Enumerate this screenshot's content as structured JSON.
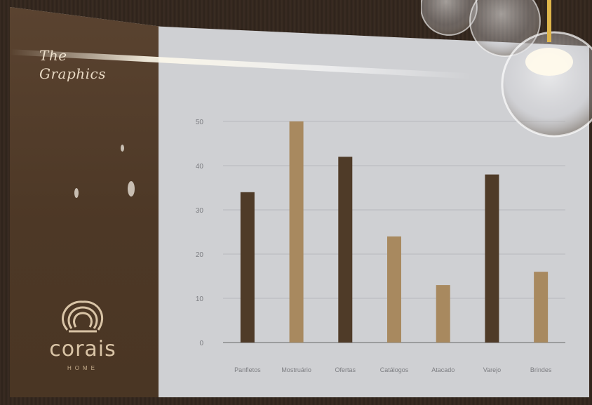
{
  "sidebar": {
    "title_line1": "The",
    "title_line2": "Graphics",
    "logo_text": "corais",
    "logo_sub": "HOME",
    "colors": {
      "panel": "#4d3826",
      "text": "#e7d8c3"
    }
  },
  "chart_data": {
    "type": "bar",
    "categories": [
      "Panfletos",
      "Mostruário",
      "Ofertas",
      "Catálogos",
      "Atacado",
      "Varejo",
      "Brindes"
    ],
    "values": [
      34,
      50,
      42,
      24,
      13,
      38,
      16
    ],
    "ylim": [
      0,
      60
    ],
    "yticks": [
      "0",
      "10",
      "20",
      "30",
      "40",
      "50"
    ],
    "ytick_values": [
      0,
      10,
      20,
      30,
      40,
      50
    ],
    "grid": true,
    "colors": [
      "#4f3b28",
      "#a8895f",
      "#4f3b28",
      "#a8895f",
      "#a8895f",
      "#4f3b28",
      "#a8895f"
    ]
  }
}
